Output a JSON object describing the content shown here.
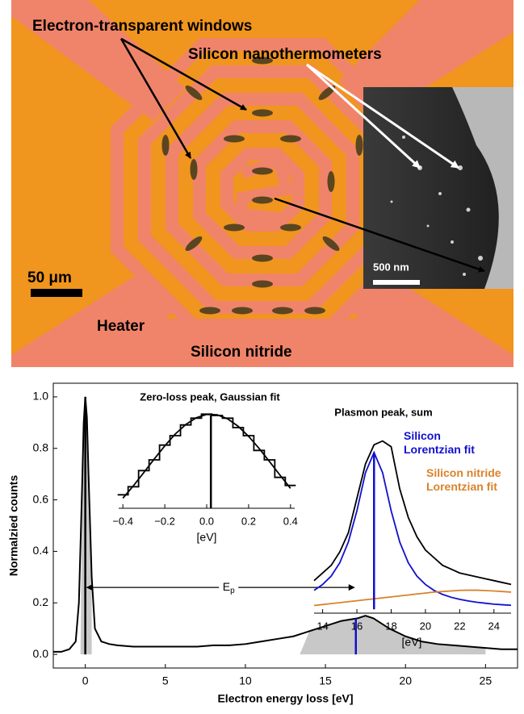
{
  "micrograph": {
    "windows_label": "Electron-transparent windows",
    "thermometers_label": "Silicon nanothermometers",
    "heater_label": "Heater",
    "nitride_label": "Silicon nitride",
    "scale_bar_label": "50 μm",
    "inset_scale_bar_label": "500 nm"
  },
  "chart_data": [
    {
      "type": "line",
      "xlabel": "Electron energy loss [eV]",
      "ylabel": "Normalzied counts",
      "xlim": [
        -2,
        27
      ],
      "ylim": [
        -0.053,
        1.053
      ],
      "xticks": [
        0,
        5,
        10,
        15,
        20,
        25
      ],
      "yticks": [
        {
          "value": 0,
          "label": "0.0"
        },
        0.2,
        0.4,
        0.6,
        0.8,
        {
          "value": 1,
          "label": "1.0"
        }
      ],
      "x": [
        -2,
        -1.5,
        -1,
        -0.6,
        -0.4,
        -0.2,
        -0.1,
        0,
        0.1,
        0.2,
        0.4,
        0.6,
        1,
        1.5,
        2,
        3,
        4,
        5,
        6,
        7,
        8,
        9,
        10,
        11,
        12,
        13,
        14,
        15,
        16,
        17,
        17.5,
        18,
        18.5,
        19,
        20,
        21,
        22,
        23,
        24,
        25,
        26,
        27
      ],
      "series": [
        {
          "color": "#000000",
          "values": [
            0.01,
            0.01,
            0.02,
            0.05,
            0.2,
            0.65,
            0.9,
            1.0,
            0.92,
            0.7,
            0.3,
            0.1,
            0.05,
            0.04,
            0.035,
            0.03,
            0.03,
            0.03,
            0.03,
            0.03,
            0.035,
            0.035,
            0.04,
            0.05,
            0.06,
            0.07,
            0.09,
            0.11,
            0.13,
            0.14,
            0.15,
            0.14,
            0.12,
            0.1,
            0.07,
            0.05,
            0.04,
            0.035,
            0.03,
            0.025,
            0.02,
            0.02
          ]
        }
      ],
      "shaded": [
        [
          -0.3,
          0.4
        ],
        [
          13.4,
          25
        ]
      ],
      "shade_color": "#c8c8c8",
      "peaks": [
        {
          "x": 0,
          "y": 1.0,
          "color": "#000000"
        },
        {
          "x": 16.9,
          "y": 0.14,
          "color": "#1010d0"
        }
      ],
      "annotation": {
        "text": "E",
        "subscript": "p",
        "from": 0,
        "to": 16.9,
        "y": 0.26
      }
    },
    {
      "type": "line",
      "title": "Zero-loss peak, Gaussian fit",
      "xlabel": "[eV]",
      "xlim": [
        -0.42,
        0.42
      ],
      "ylim": [
        0.3,
        1.02
      ],
      "xticks": [
        {
          "value": -0.4,
          "label": "−0.4"
        },
        {
          "value": -0.2,
          "label": "−0.2"
        },
        {
          "value": 0,
          "label": "0.0"
        },
        0.2,
        0.4
      ],
      "x": [
        -0.4,
        -0.35,
        -0.3,
        -0.25,
        -0.2,
        -0.15,
        -0.1,
        -0.05,
        0,
        0.05,
        0.1,
        0.15,
        0.2,
        0.25,
        0.3,
        0.35,
        0.4
      ],
      "series": [
        {
          "color": "#000000",
          "style": "step",
          "values": [
            0.4,
            0.46,
            0.58,
            0.66,
            0.77,
            0.84,
            0.92,
            0.97,
            1.0,
            0.99,
            0.97,
            0.9,
            0.84,
            0.73,
            0.66,
            0.53,
            0.47
          ]
        },
        {
          "color": "#000000",
          "values": [
            0.375,
            0.467,
            0.566,
            0.667,
            0.764,
            0.852,
            0.923,
            0.973,
            0.998,
            0.995,
            0.965,
            0.91,
            0.835,
            0.745,
            0.647,
            0.546,
            0.448
          ]
        }
      ],
      "peaks": [
        {
          "x": 0.02,
          "y": 0.99,
          "color": "#000000"
        }
      ]
    },
    {
      "type": "line",
      "title": "Plasmon peak, sum",
      "xlabel": "[eV]",
      "xlim": [
        13.5,
        25
      ],
      "ylim": [
        -0.02,
        0.95
      ],
      "xticks": [
        14,
        16,
        18,
        20,
        22,
        24
      ],
      "x": [
        13.5,
        14,
        14.5,
        15,
        15.5,
        16,
        16.5,
        17,
        17.5,
        18,
        18.5,
        19,
        19.5,
        20,
        20.5,
        21,
        21.5,
        22,
        22.5,
        23,
        23.5,
        24,
        24.5,
        25
      ],
      "series": [
        {
          "color": "#000000",
          "values": [
            0.15,
            0.19,
            0.23,
            0.3,
            0.4,
            0.58,
            0.76,
            0.86,
            0.88,
            0.85,
            0.63,
            0.48,
            0.38,
            0.31,
            0.27,
            0.23,
            0.21,
            0.19,
            0.18,
            0.17,
            0.16,
            0.15,
            0.14,
            0.13
          ]
        },
        {
          "name": "Silicon Lorentzian fit",
          "color": "#1010d0",
          "values": [
            0.099,
            0.13,
            0.174,
            0.243,
            0.352,
            0.515,
            0.714,
            0.82,
            0.714,
            0.515,
            0.352,
            0.243,
            0.174,
            0.13,
            0.099,
            0.078,
            0.063,
            0.052,
            0.044,
            0.037,
            0.032,
            0.027,
            0.024,
            0.021
          ]
        },
        {
          "name": "Silicon nitride Lorentzian fit",
          "color": "#d9822b",
          "values": [
            0.02,
            0.025,
            0.03,
            0.035,
            0.04,
            0.045,
            0.05,
            0.055,
            0.06,
            0.065,
            0.07,
            0.075,
            0.08,
            0.085,
            0.09,
            0.093,
            0.096,
            0.099,
            0.1,
            0.1,
            0.098,
            0.096,
            0.093,
            0.09
          ]
        }
      ],
      "peaks": [
        {
          "x": 17,
          "y": 0.82,
          "color": "#1010d0"
        }
      ]
    }
  ]
}
